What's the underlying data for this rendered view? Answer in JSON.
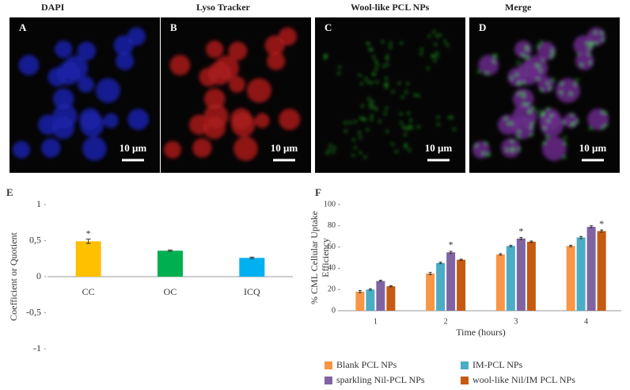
{
  "panels": [
    {
      "title": "DAPI",
      "letter": "A",
      "scale": "10 μm"
    },
    {
      "title": "Lyso Tracker",
      "letter": "B",
      "scale": "10 μm"
    },
    {
      "title": "Wool-like PCL NPs",
      "letter": "C",
      "scale": "10 μm"
    },
    {
      "title": "Merge",
      "letter": "D",
      "scale": "10 μm"
    }
  ],
  "chart_data": [
    {
      "type": "bar",
      "panel": "E",
      "y_label": "Coefficient or Quotient",
      "categories": [
        "CC",
        "OC",
        "ICQ"
      ],
      "values": [
        0.49,
        0.36,
        0.26
      ],
      "errors": [
        0.03,
        0.01,
        0.01
      ],
      "colors": [
        "#ffc000",
        "#00b050",
        "#00b0f0"
      ],
      "annotations": [
        "*",
        null,
        null
      ],
      "ylim": [
        -1,
        1
      ],
      "yticks": [
        -1,
        {
          "value": -0.5,
          "label": "-0,5"
        },
        0,
        {
          "value": 0.5,
          "label": "0,5"
        },
        1
      ]
    },
    {
      "type": "grouped-bar",
      "panel": "F",
      "x_label": "Time (hours)",
      "y_label": [
        "% CML Cellular Uptake",
        "Efficiency"
      ],
      "categories": [
        "1",
        "2",
        "3",
        "4"
      ],
      "series": [
        {
          "name": "Blank PCL NPs",
          "color": "#f79646",
          "values": [
            18,
            35,
            53,
            61
          ],
          "errors": [
            1,
            1,
            0.7,
            0.7
          ],
          "annotations": [
            null,
            null,
            null,
            null
          ]
        },
        {
          "name": "IM-PCL NPs",
          "color": "#4bacc6",
          "values": [
            20,
            45,
            61,
            69
          ],
          "errors": [
            0.7,
            0.7,
            0.7,
            1
          ],
          "annotations": [
            null,
            null,
            null,
            null
          ]
        },
        {
          "name": "sparkling Nil-PCL NPs",
          "color": "#8064a2",
          "values": [
            28,
            55,
            68,
            79
          ],
          "errors": [
            0.7,
            1,
            1,
            1
          ],
          "annotations": [
            null,
            "*",
            "*",
            null
          ]
        },
        {
          "name": "wool-like Nil/IM PCL NPs",
          "color": "#c55a11",
          "values": [
            23,
            48,
            65,
            75
          ],
          "errors": [
            0.5,
            0.5,
            0.7,
            1
          ],
          "annotations": [
            null,
            null,
            null,
            "*"
          ]
        }
      ],
      "ylim": [
        0,
        100
      ],
      "yticks": [
        0,
        20,
        40,
        60,
        80,
        100
      ]
    }
  ]
}
